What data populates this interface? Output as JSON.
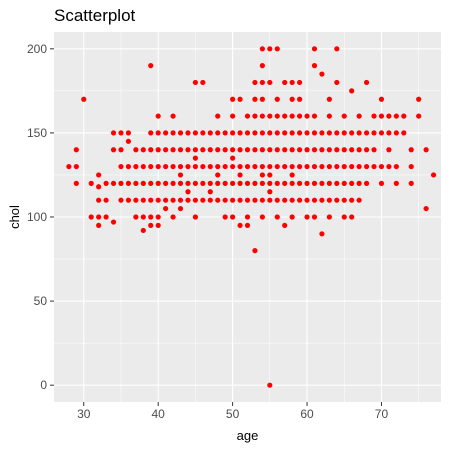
{
  "chart_data": {
    "type": "scatter",
    "title": "Scatterplot",
    "xlabel": "age",
    "ylabel": "chol",
    "xlim": [
      26,
      78
    ],
    "ylim": [
      -10,
      210
    ],
    "xticks": [
      30,
      40,
      50,
      60,
      70
    ],
    "yticks": [
      0,
      50,
      100,
      150,
      200
    ],
    "grid": true,
    "background": "#ebebeb",
    "grid_color": "#ffffff",
    "point_color": "#ff0000",
    "series": [
      {
        "points": [
          [
            28,
            130
          ],
          [
            29,
            130
          ],
          [
            29,
            140
          ],
          [
            29,
            120
          ],
          [
            30,
            170
          ],
          [
            31,
            100
          ],
          [
            31,
            120
          ],
          [
            32,
            125
          ],
          [
            32,
            110
          ],
          [
            32,
            100
          ],
          [
            32,
            95
          ],
          [
            32,
            118
          ],
          [
            33,
            120
          ],
          [
            33,
            110
          ],
          [
            33,
            100
          ],
          [
            34,
            150
          ],
          [
            34,
            140
          ],
          [
            34,
            120
          ],
          [
            34,
            97
          ],
          [
            35,
            150
          ],
          [
            35,
            140
          ],
          [
            35,
            130
          ],
          [
            35,
            120
          ],
          [
            35,
            110
          ],
          [
            36,
            150
          ],
          [
            36,
            130
          ],
          [
            36,
            120
          ],
          [
            36,
            110
          ],
          [
            36,
            145
          ],
          [
            37,
            140
          ],
          [
            37,
            130
          ],
          [
            37,
            120
          ],
          [
            37,
            110
          ],
          [
            37,
            100
          ],
          [
            38,
            140
          ],
          [
            38,
            130
          ],
          [
            38,
            120
          ],
          [
            38,
            110
          ],
          [
            38,
            100
          ],
          [
            38,
            92
          ],
          [
            39,
            190
          ],
          [
            39,
            150
          ],
          [
            39,
            140
          ],
          [
            39,
            130
          ],
          [
            39,
            120
          ],
          [
            39,
            110
          ],
          [
            39,
            100
          ],
          [
            39,
            95
          ],
          [
            40,
            160
          ],
          [
            40,
            150
          ],
          [
            40,
            140
          ],
          [
            40,
            130
          ],
          [
            40,
            120
          ],
          [
            40,
            110
          ],
          [
            40,
            100
          ],
          [
            40,
            95
          ],
          [
            41,
            150
          ],
          [
            41,
            140
          ],
          [
            41,
            130
          ],
          [
            41,
            120
          ],
          [
            41,
            110
          ],
          [
            41,
            105
          ],
          [
            42,
            160
          ],
          [
            42,
            150
          ],
          [
            42,
            140
          ],
          [
            42,
            130
          ],
          [
            42,
            120
          ],
          [
            42,
            110
          ],
          [
            42,
            100
          ],
          [
            43,
            150
          ],
          [
            43,
            140
          ],
          [
            43,
            130
          ],
          [
            43,
            125
          ],
          [
            43,
            120
          ],
          [
            43,
            110
          ],
          [
            43,
            105
          ],
          [
            44,
            150
          ],
          [
            44,
            140
          ],
          [
            44,
            130
          ],
          [
            44,
            120
          ],
          [
            44,
            115
          ],
          [
            44,
            110
          ],
          [
            45,
            180
          ],
          [
            45,
            150
          ],
          [
            45,
            140
          ],
          [
            45,
            135
          ],
          [
            45,
            130
          ],
          [
            45,
            120
          ],
          [
            45,
            110
          ],
          [
            45,
            100
          ],
          [
            46,
            180
          ],
          [
            46,
            150
          ],
          [
            46,
            140
          ],
          [
            46,
            130
          ],
          [
            46,
            120
          ],
          [
            46,
            110
          ],
          [
            47,
            150
          ],
          [
            47,
            140
          ],
          [
            47,
            130
          ],
          [
            47,
            120
          ],
          [
            47,
            115
          ],
          [
            47,
            110
          ],
          [
            48,
            160
          ],
          [
            48,
            150
          ],
          [
            48,
            140
          ],
          [
            48,
            130
          ],
          [
            48,
            125
          ],
          [
            48,
            120
          ],
          [
            48,
            110
          ],
          [
            49,
            150
          ],
          [
            49,
            140
          ],
          [
            49,
            130
          ],
          [
            49,
            120
          ],
          [
            49,
            110
          ],
          [
            49,
            100
          ],
          [
            50,
            170
          ],
          [
            50,
            160
          ],
          [
            50,
            150
          ],
          [
            50,
            140
          ],
          [
            50,
            135
          ],
          [
            50,
            130
          ],
          [
            50,
            120
          ],
          [
            50,
            110
          ],
          [
            50,
            100
          ],
          [
            51,
            170
          ],
          [
            51,
            150
          ],
          [
            51,
            140
          ],
          [
            51,
            130
          ],
          [
            51,
            125
          ],
          [
            51,
            120
          ],
          [
            51,
            110
          ],
          [
            51,
            95
          ],
          [
            52,
            160
          ],
          [
            52,
            150
          ],
          [
            52,
            140
          ],
          [
            52,
            130
          ],
          [
            52,
            120
          ],
          [
            52,
            110
          ],
          [
            52,
            100
          ],
          [
            52,
            95
          ],
          [
            53,
            180
          ],
          [
            53,
            170
          ],
          [
            53,
            160
          ],
          [
            53,
            150
          ],
          [
            53,
            140
          ],
          [
            53,
            130
          ],
          [
            53,
            120
          ],
          [
            53,
            110
          ],
          [
            53,
            80
          ],
          [
            54,
            200
          ],
          [
            54,
            190
          ],
          [
            54,
            180
          ],
          [
            54,
            170
          ],
          [
            54,
            160
          ],
          [
            54,
            150
          ],
          [
            54,
            140
          ],
          [
            54,
            130
          ],
          [
            54,
            125
          ],
          [
            54,
            120
          ],
          [
            54,
            110
          ],
          [
            54,
            100
          ],
          [
            55,
            200
          ],
          [
            55,
            180
          ],
          [
            55,
            160
          ],
          [
            55,
            150
          ],
          [
            55,
            140
          ],
          [
            55,
            130
          ],
          [
            55,
            125
          ],
          [
            55,
            120
          ],
          [
            55,
            115
          ],
          [
            55,
            110
          ],
          [
            55,
            0
          ],
          [
            56,
            200
          ],
          [
            56,
            170
          ],
          [
            56,
            160
          ],
          [
            56,
            150
          ],
          [
            56,
            140
          ],
          [
            56,
            130
          ],
          [
            56,
            120
          ],
          [
            56,
            110
          ],
          [
            56,
            100
          ],
          [
            57,
            180
          ],
          [
            57,
            160
          ],
          [
            57,
            150
          ],
          [
            57,
            140
          ],
          [
            57,
            130
          ],
          [
            57,
            120
          ],
          [
            57,
            110
          ],
          [
            57,
            95
          ],
          [
            58,
            180
          ],
          [
            58,
            170
          ],
          [
            58,
            160
          ],
          [
            58,
            150
          ],
          [
            58,
            140
          ],
          [
            58,
            130
          ],
          [
            58,
            125
          ],
          [
            58,
            120
          ],
          [
            58,
            110
          ],
          [
            58,
            100
          ],
          [
            59,
            180
          ],
          [
            59,
            170
          ],
          [
            59,
            160
          ],
          [
            59,
            150
          ],
          [
            59,
            140
          ],
          [
            59,
            130
          ],
          [
            59,
            120
          ],
          [
            59,
            110
          ],
          [
            60,
            160
          ],
          [
            60,
            150
          ],
          [
            60,
            140
          ],
          [
            60,
            130
          ],
          [
            60,
            120
          ],
          [
            60,
            110
          ],
          [
            60,
            100
          ],
          [
            61,
            200
          ],
          [
            61,
            190
          ],
          [
            61,
            160
          ],
          [
            61,
            150
          ],
          [
            61,
            140
          ],
          [
            61,
            130
          ],
          [
            61,
            120
          ],
          [
            61,
            110
          ],
          [
            61,
            100
          ],
          [
            62,
            185
          ],
          [
            62,
            150
          ],
          [
            62,
            140
          ],
          [
            62,
            130
          ],
          [
            62,
            120
          ],
          [
            62,
            110
          ],
          [
            62,
            90
          ],
          [
            63,
            170
          ],
          [
            63,
            160
          ],
          [
            63,
            150
          ],
          [
            63,
            140
          ],
          [
            63,
            130
          ],
          [
            63,
            120
          ],
          [
            63,
            110
          ],
          [
            63,
            100
          ],
          [
            64,
            200
          ],
          [
            64,
            180
          ],
          [
            64,
            150
          ],
          [
            64,
            140
          ],
          [
            64,
            130
          ],
          [
            64,
            120
          ],
          [
            64,
            110
          ],
          [
            65,
            160
          ],
          [
            65,
            150
          ],
          [
            65,
            140
          ],
          [
            65,
            130
          ],
          [
            65,
            120
          ],
          [
            65,
            110
          ],
          [
            65,
            100
          ],
          [
            66,
            175
          ],
          [
            66,
            150
          ],
          [
            66,
            140
          ],
          [
            66,
            130
          ],
          [
            66,
            120
          ],
          [
            66,
            110
          ],
          [
            66,
            100
          ],
          [
            67,
            160
          ],
          [
            67,
            150
          ],
          [
            67,
            140
          ],
          [
            67,
            130
          ],
          [
            67,
            120
          ],
          [
            67,
            110
          ],
          [
            68,
            180
          ],
          [
            68,
            150
          ],
          [
            68,
            140
          ],
          [
            68,
            130
          ],
          [
            68,
            120
          ],
          [
            69,
            160
          ],
          [
            69,
            150
          ],
          [
            69,
            140
          ],
          [
            69,
            130
          ],
          [
            70,
            170
          ],
          [
            70,
            160
          ],
          [
            70,
            150
          ],
          [
            70,
            130
          ],
          [
            70,
            120
          ],
          [
            71,
            160
          ],
          [
            71,
            150
          ],
          [
            71,
            140
          ],
          [
            71,
            130
          ],
          [
            72,
            160
          ],
          [
            72,
            150
          ],
          [
            72,
            130
          ],
          [
            72,
            120
          ],
          [
            73,
            160
          ],
          [
            73,
            150
          ],
          [
            74,
            140
          ],
          [
            74,
            130
          ],
          [
            74,
            120
          ],
          [
            75,
            170
          ],
          [
            75,
            160
          ],
          [
            76,
            140
          ],
          [
            76,
            105
          ],
          [
            77,
            125
          ]
        ]
      }
    ]
  }
}
